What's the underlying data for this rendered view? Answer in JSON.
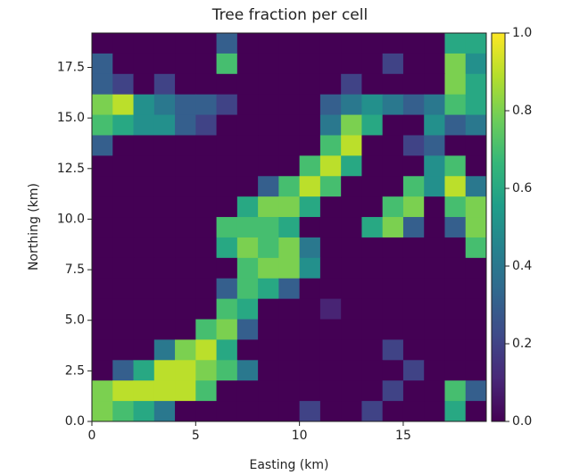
{
  "chart_data": {
    "type": "heatmap",
    "title": "Tree fraction per cell",
    "x_label": "Easting (km)",
    "y_label": "Northing (km)",
    "xlim": [
      0,
      19
    ],
    "ylim": [
      0,
      19.2
    ],
    "xticks": [
      0,
      5,
      10,
      15
    ],
    "yticks": [
      {
        "value": 0,
        "label": "0.0"
      },
      2.5,
      {
        "value": 5,
        "label": "5.0"
      },
      7.5,
      {
        "value": 10,
        "label": "10.0"
      },
      12.5,
      {
        "value": 15,
        "label": "15.0"
      },
      17.5
    ],
    "colormap": "viridis",
    "clim": [
      0,
      1
    ],
    "cticks": [
      {
        "value": 0,
        "label": "0.0"
      },
      0.2,
      0.4,
      0.6,
      0.8,
      {
        "value": 1,
        "label": "1.0"
      }
    ],
    "z": [
      [
        0,
        0,
        0,
        0,
        0,
        0,
        0.3,
        0,
        0,
        0,
        0,
        0,
        0,
        0,
        0,
        0,
        0,
        0.6,
        0.6
      ],
      [
        0.3,
        0,
        0,
        0,
        0,
        0,
        0.7,
        0,
        0,
        0,
        0,
        0,
        0,
        0,
        0.2,
        0,
        0,
        0.8,
        0.5
      ],
      [
        0.3,
        0.2,
        0,
        0.2,
        0,
        0,
        0,
        0,
        0,
        0,
        0,
        0,
        0.2,
        0,
        0,
        0,
        0,
        0.8,
        0.6
      ],
      [
        0.8,
        0.9,
        0.5,
        0.4,
        0.3,
        0.3,
        0.2,
        0,
        0,
        0,
        0,
        0.3,
        0.4,
        0.5,
        0.4,
        0.3,
        0.4,
        0.7,
        0.6
      ],
      [
        0.7,
        0.6,
        0.5,
        0.5,
        0.3,
        0.2,
        0,
        0,
        0,
        0,
        0,
        0.4,
        0.8,
        0.6,
        0,
        0,
        0.5,
        0.3,
        0.4
      ],
      [
        0.3,
        0,
        0,
        0,
        0,
        0,
        0,
        0,
        0,
        0,
        0,
        0.7,
        0.9,
        0,
        0,
        0.2,
        0.3,
        0,
        0
      ],
      [
        0,
        0,
        0,
        0,
        0,
        0,
        0,
        0,
        0,
        0,
        0.7,
        0.9,
        0.6,
        0,
        0,
        0,
        0.5,
        0.7,
        0
      ],
      [
        0,
        0,
        0,
        0,
        0,
        0,
        0,
        0,
        0.3,
        0.7,
        0.9,
        0.7,
        0,
        0,
        0,
        0.7,
        0.5,
        0.9,
        0.4
      ],
      [
        0,
        0,
        0,
        0,
        0,
        0,
        0,
        0.6,
        0.8,
        0.8,
        0.6,
        0,
        0,
        0,
        0.7,
        0.8,
        0,
        0.7,
        0.8
      ],
      [
        0,
        0,
        0,
        0,
        0,
        0,
        0.7,
        0.7,
        0.7,
        0.6,
        0,
        0,
        0,
        0.6,
        0.8,
        0.3,
        0,
        0.3,
        0.8
      ],
      [
        0,
        0,
        0,
        0,
        0,
        0,
        0.6,
        0.8,
        0.7,
        0.8,
        0.4,
        0,
        0,
        0,
        0,
        0,
        0,
        0,
        0.7
      ],
      [
        0,
        0,
        0,
        0,
        0,
        0,
        0,
        0.7,
        0.8,
        0.8,
        0.5,
        0,
        0,
        0,
        0,
        0,
        0,
        0,
        0
      ],
      [
        0,
        0,
        0,
        0,
        0,
        0,
        0.3,
        0.7,
        0.6,
        0.3,
        0,
        0,
        0,
        0,
        0,
        0,
        0,
        0,
        0
      ],
      [
        0,
        0,
        0,
        0,
        0,
        0,
        0.7,
        0.6,
        0,
        0,
        0,
        0.1,
        0,
        0,
        0,
        0,
        0,
        0,
        0
      ],
      [
        0,
        0,
        0,
        0,
        0,
        0.7,
        0.8,
        0.3,
        0,
        0,
        0,
        0,
        0,
        0,
        0,
        0,
        0,
        0,
        0
      ],
      [
        0,
        0,
        0,
        0.4,
        0.8,
        0.9,
        0.6,
        0,
        0,
        0,
        0,
        0,
        0,
        0,
        0.2,
        0,
        0,
        0,
        0
      ],
      [
        0,
        0.3,
        0.6,
        0.9,
        0.9,
        0.8,
        0.7,
        0.4,
        0,
        0,
        0,
        0,
        0,
        0,
        0,
        0.2,
        0,
        0,
        0
      ],
      [
        0.8,
        0.9,
        0.9,
        0.9,
        0.9,
        0.7,
        0,
        0,
        0,
        0,
        0,
        0,
        0,
        0,
        0.2,
        0,
        0,
        0.7,
        0.3
      ],
      [
        0.8,
        0.7,
        0.6,
        0.4,
        0,
        0,
        0,
        0,
        0,
        0,
        0.2,
        0,
        0,
        0.2,
        0,
        0,
        0,
        0.6,
        0
      ]
    ]
  }
}
